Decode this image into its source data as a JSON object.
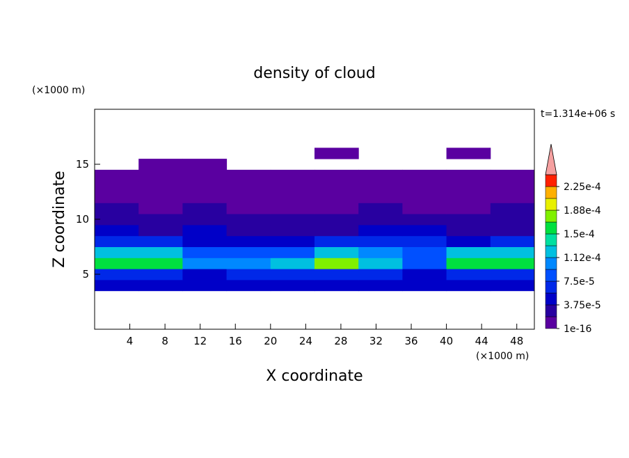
{
  "chart_data": {
    "type": "contour",
    "title": "density of cloud",
    "x_label": "X coordinate",
    "y_label": "Z coordinate",
    "x_unit": "(×1000 m)",
    "y_unit": "(×1000 m)",
    "annotation": "t=1.314e+06 s",
    "xlim": [
      0,
      50
    ],
    "ylim": [
      0,
      20
    ],
    "xticks": [
      4,
      8,
      12,
      16,
      20,
      24,
      28,
      32,
      36,
      40,
      44,
      48
    ],
    "yticks": [
      5,
      10,
      15
    ],
    "cell_width": 5,
    "cell_height": 1,
    "x": [
      2.5,
      7.5,
      12.5,
      17.5,
      22.5,
      27.5,
      32.5,
      37.5,
      42.5,
      47.5
    ],
    "y": [
      4,
      5,
      6,
      7,
      8,
      9,
      10,
      11,
      12,
      13,
      14,
      15,
      16
    ],
    "z": [
      [
        4e-05,
        4e-05,
        4e-05,
        4e-05,
        4e-05,
        4e-05,
        4e-05,
        4e-05,
        4e-05,
        4e-05
      ],
      [
        7e-05,
        6e-05,
        5e-05,
        6e-05,
        7e-05,
        7e-05,
        6e-05,
        5e-05,
        7e-05,
        7e-05
      ],
      [
        0.00016,
        0.00015,
        0.0001,
        0.0001,
        0.00012,
        0.00017,
        0.00013,
        8e-05,
        0.00015,
        0.00016
      ],
      [
        0.00012,
        0.00013,
        9e-05,
        8e-05,
        9e-05,
        0.00012,
        0.0001,
        9e-05,
        0.00012,
        0.00013
      ],
      [
        6e-05,
        7e-05,
        5e-05,
        5e-05,
        5e-05,
        6e-05,
        7e-05,
        6e-05,
        5e-05,
        6e-05
      ],
      [
        4e-05,
        3e-05,
        4e-05,
        3e-05,
        3e-05,
        3e-05,
        5e-05,
        4e-05,
        3e-05,
        3e-05
      ],
      [
        3e-05,
        2e-05,
        3e-05,
        2e-05,
        2e-05,
        2e-05,
        3e-05,
        2e-05,
        2e-05,
        3e-05
      ],
      [
        2e-05,
        1e-05,
        2e-05,
        1e-05,
        1e-05,
        1e-05,
        2e-05,
        1e-05,
        1e-05,
        2e-05
      ],
      [
        1e-05,
        1e-05,
        1e-05,
        1e-05,
        1e-05,
        1e-05,
        1e-05,
        1e-05,
        1e-05,
        1e-05
      ],
      [
        1e-05,
        1e-05,
        1e-05,
        1e-05,
        1e-05,
        1e-05,
        1e-05,
        1e-05,
        1e-05,
        1e-05
      ],
      [
        1e-05,
        1e-05,
        1e-05,
        1e-05,
        1e-05,
        1e-05,
        1e-05,
        1e-05,
        1e-05,
        1e-05
      ],
      [
        null,
        1e-05,
        1e-05,
        null,
        null,
        null,
        null,
        null,
        null,
        null
      ],
      [
        null,
        null,
        null,
        null,
        null,
        1e-05,
        null,
        null,
        1e-05,
        null
      ]
    ],
    "levels": [
      1e-16,
      1.875e-05,
      3.75e-05,
      5.625e-05,
      7.5e-05,
      9.375e-05,
      0.0001125,
      0.00013125,
      0.00015,
      0.00016875,
      0.0001875,
      0.00020625,
      0.000225,
      0.00024375
    ],
    "colors": [
      "#5a00a0",
      "#2800a0",
      "#0000c8",
      "#0028e8",
      "#0050ff",
      "#0088ff",
      "#00c0e0",
      "#00e0a0",
      "#00e040",
      "#80f000",
      "#e8f000",
      "#ffb000",
      "#ff2000"
    ],
    "extend_color": "#f5a0a0",
    "colorbar_lim": [
      1e-16,
      0.00024375
    ],
    "colorbar_ticks": [
      {
        "value": 1e-16,
        "label": "1e-16"
      },
      {
        "value": 3.75e-05,
        "label": "3.75e-5"
      },
      {
        "value": 7.5e-05,
        "label": "7.5e-5"
      },
      {
        "value": 0.0001125,
        "label": "1.12e-4"
      },
      {
        "value": 0.00015,
        "label": "1.5e-4"
      },
      {
        "value": 0.0001875,
        "label": "1.88e-4"
      },
      {
        "value": 0.000225,
        "label": "2.25e-4"
      }
    ]
  }
}
